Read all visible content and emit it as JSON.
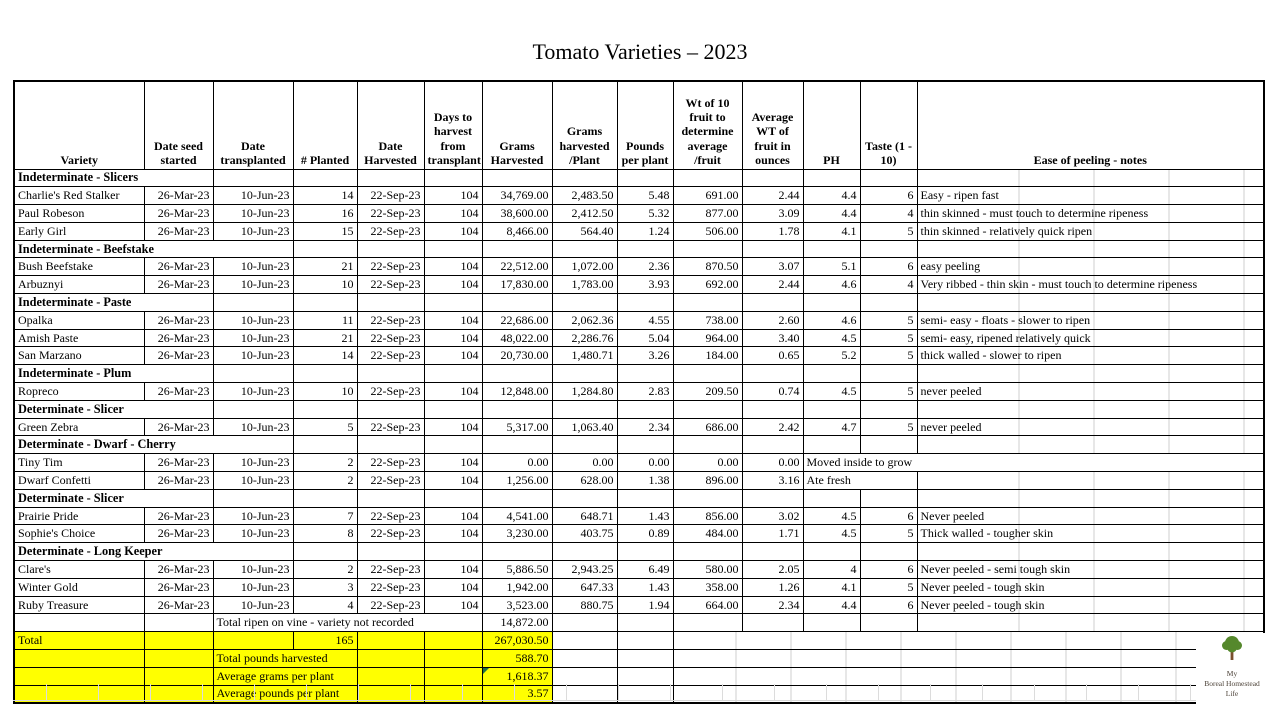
{
  "title": "Tomato Varieties – 2023",
  "columns": [
    "Variety",
    "Date seed\nstarted",
    "Date\ntransplanted",
    "# Planted",
    "Date\nHarvested",
    "Days to\nharvest\nfrom\ntransplant",
    "Grams\nHarvested",
    "Grams\nharvested\n/Plant",
    "Pounds\nper plant",
    "Wt of 10\nfruit to\ndetermine\naverage\n/fruit",
    "Average\nWT of\nfruit in\nounces",
    "PH",
    "Taste (1 -\n10)",
    "Ease of peeling - notes"
  ],
  "rows": [
    {
      "type": "section",
      "label": "Indeterminate - Slicers",
      "span": 2
    },
    {
      "type": "data",
      "cells": [
        "Charlie's Red Stalker",
        "26-Mar-23",
        "10-Jun-23",
        "14",
        "22-Sep-23",
        "104",
        "34,769.00",
        "2,483.50",
        "5.48",
        "691.00",
        "2.44",
        "4.4",
        "6",
        "Easy - ripen fast"
      ]
    },
    {
      "type": "data",
      "cells": [
        "Paul Robeson",
        "26-Mar-23",
        "10-Jun-23",
        "16",
        "22-Sep-23",
        "104",
        "38,600.00",
        "2,412.50",
        "5.32",
        "877.00",
        "3.09",
        "4.4",
        "4",
        "thin skinned - must touch to determine ripeness"
      ]
    },
    {
      "type": "data",
      "cells": [
        "Early Girl",
        "26-Mar-23",
        "10-Jun-23",
        "15",
        "22-Sep-23",
        "104",
        "8,466.00",
        "564.40",
        "1.24",
        "506.00",
        "1.78",
        "4.1",
        "5",
        "thin skinned - relatively quick ripen"
      ]
    },
    {
      "type": "section",
      "label": "Indeterminate - Beefstake",
      "span": 3
    },
    {
      "type": "data",
      "cells": [
        "Bush Beefstake",
        "26-Mar-23",
        "10-Jun-23",
        "21",
        "22-Sep-23",
        "104",
        "22,512.00",
        "1,072.00",
        "2.36",
        "870.50",
        "3.07",
        "5.1",
        "6",
        "easy peeling"
      ]
    },
    {
      "type": "data",
      "cells": [
        "Arbuznyi",
        "26-Mar-23",
        "10-Jun-23",
        "10",
        "22-Sep-23",
        "104",
        "17,830.00",
        "1,783.00",
        "3.93",
        "692.00",
        "2.44",
        "4.6",
        "4",
        "Very ribbed - thin skin - must touch to determine ripeness"
      ]
    },
    {
      "type": "section",
      "label": "Indeterminate - Paste",
      "span": 2
    },
    {
      "type": "data",
      "cells": [
        "Opalka",
        "26-Mar-23",
        "10-Jun-23",
        "11",
        "22-Sep-23",
        "104",
        "22,686.00",
        "2,062.36",
        "4.55",
        "738.00",
        "2.60",
        "4.6",
        "5",
        "semi- easy - floats - slower to  ripen"
      ]
    },
    {
      "type": "data",
      "cells": [
        "Amish Paste",
        "26-Mar-23",
        "10-Jun-23",
        "21",
        "22-Sep-23",
        "104",
        "48,022.00",
        "2,286.76",
        "5.04",
        "964.00",
        "3.40",
        "4.5",
        "5",
        "semi- easy, ripened relatively quick"
      ]
    },
    {
      "type": "data",
      "cells": [
        "San Marzano",
        "26-Mar-23",
        "10-Jun-23",
        "14",
        "22-Sep-23",
        "104",
        "20,730.00",
        "1,480.71",
        "3.26",
        "184.00",
        "0.65",
        "5.2",
        "5",
        "thick walled - slower to ripen"
      ]
    },
    {
      "type": "section",
      "label": "Indeterminate -  Plum",
      "span": 2
    },
    {
      "type": "data",
      "cells": [
        "Ropreco",
        "26-Mar-23",
        "10-Jun-23",
        "10",
        "22-Sep-23",
        "104",
        "12,848.00",
        "1,284.80",
        "2.83",
        "209.50",
        "0.74",
        "4.5",
        "5",
        "never peeled"
      ]
    },
    {
      "type": "section",
      "label": "Determinate - Slicer",
      "span": 2
    },
    {
      "type": "data",
      "cells": [
        "Green Zebra",
        "26-Mar-23",
        "10-Jun-23",
        "5",
        "22-Sep-23",
        "104",
        "5,317.00",
        "1,063.40",
        "2.34",
        "686.00",
        "2.42",
        "4.7",
        "5",
        "never peeled"
      ]
    },
    {
      "type": "section",
      "label": "Determinate - Dwarf - Cherry",
      "span": 3
    },
    {
      "type": "data",
      "merge": 3,
      "cells": [
        "Tiny Tim",
        "26-Mar-23",
        "10-Jun-23",
        "2",
        "22-Sep-23",
        "104",
        "0.00",
        "0.00",
        "0.00",
        "0.00",
        "0.00",
        "Moved inside to grow"
      ]
    },
    {
      "type": "data",
      "merge": 2,
      "cells": [
        "Dwarf Confetti",
        "26-Mar-23",
        "10-Jun-23",
        "2",
        "22-Sep-23",
        "104",
        "1,256.00",
        "628.00",
        "1.38",
        "896.00",
        "3.16",
        "Ate fresh",
        ""
      ]
    },
    {
      "type": "section",
      "label": "Determinate - Slicer",
      "span": 2
    },
    {
      "type": "data",
      "cells": [
        "Prairie Pride",
        "26-Mar-23",
        "10-Jun-23",
        "7",
        "22-Sep-23",
        "104",
        "4,541.00",
        "648.71",
        "1.43",
        "856.00",
        "3.02",
        "4.5",
        "6",
        "Never peeled"
      ]
    },
    {
      "type": "data",
      "cells": [
        "Sophie's Choice",
        "26-Mar-23",
        "10-Jun-23",
        "8",
        "22-Sep-23",
        "104",
        "3,230.00",
        "403.75",
        "0.89",
        "484.00",
        "1.71",
        "4.5",
        "5",
        "Thick walled - tougher skin"
      ]
    },
    {
      "type": "section",
      "label": "Determinate - Long Keeper",
      "span": 3
    },
    {
      "type": "data",
      "cells": [
        "Clare's",
        "26-Mar-23",
        "10-Jun-23",
        "2",
        "22-Sep-23",
        "104",
        "5,886.50",
        "2,943.25",
        "6.49",
        "580.00",
        "2.05",
        "4",
        "6",
        "Never peeled -  semi tough skin"
      ]
    },
    {
      "type": "data",
      "cells": [
        "Winter Gold",
        "26-Mar-23",
        "10-Jun-23",
        "3",
        "22-Sep-23",
        "104",
        "1,942.00",
        "647.33",
        "1.43",
        "358.00",
        "1.26",
        "4.1",
        "5",
        "Never peeled - tough skin"
      ]
    },
    {
      "type": "data",
      "cells": [
        "Ruby Treasure",
        "26-Mar-23",
        "10-Jun-23",
        "4",
        "22-Sep-23",
        "104",
        "3,523.00",
        "880.75",
        "1.94",
        "664.00",
        "2.34",
        "4.4",
        "6",
        "Never peeled - tough skin"
      ]
    }
  ],
  "totals": {
    "ripen_label": "Total ripen on  vine - variety not recorded",
    "ripen_value": "14,872.00",
    "total_label": "Total",
    "total_planted": "165",
    "total_grams": "267,030.50",
    "summaries": [
      {
        "label": "Total pounds harvested",
        "value": "588.70",
        "comment_marker": false
      },
      {
        "label": "Average grams per plant",
        "value": "1,618.37",
        "comment_marker": true
      },
      {
        "label": "Average pounds per plant",
        "value": "3.57",
        "comment_marker": false
      }
    ]
  },
  "logo": {
    "line1": "My",
    "line2": "Boreal Homestead",
    "line3": "Life"
  },
  "colors": {
    "highlight": "#ffff00",
    "cell_border": "#000000",
    "faint_grid": "#cfcfcf",
    "comment_marker_green": "#217346",
    "tree_green": "#55882c",
    "tree_trunk": "#7b4f2e"
  }
}
